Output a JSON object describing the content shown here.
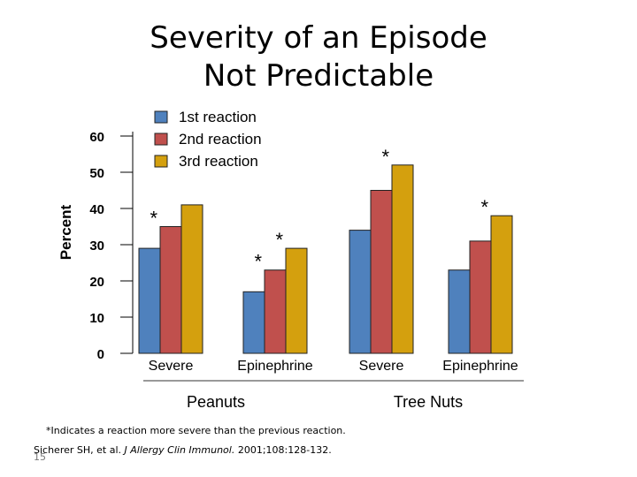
{
  "slide": {
    "title_line1": "Severity of an Episode",
    "title_line2": "Not Predictable",
    "footnote": "*Indicates a reaction more severe than the previous reaction.",
    "citation_authors": "Sicherer SH, et al.",
    "citation_journal": "J Allergy Clin Immunol.",
    "citation_details": "2001;108:128-132.",
    "slide_number": "15"
  },
  "chart_data": {
    "type": "bar",
    "title": "",
    "ylabel": "Percent",
    "xlabel": "",
    "ylim": [
      0,
      60
    ],
    "yticks": [
      0,
      10,
      20,
      30,
      40,
      50,
      60
    ],
    "grid": false,
    "legend_position": "top-left",
    "categories": [
      "Severe",
      "Epinephrine",
      "Severe",
      "Epinephrine"
    ],
    "groups": [
      {
        "label": "Peanuts",
        "categories": [
          0,
          1
        ]
      },
      {
        "label": "Tree Nuts",
        "categories": [
          2,
          3
        ]
      }
    ],
    "series": [
      {
        "name": "1st reaction",
        "color": "#4f81bd",
        "values": [
          29,
          17,
          34,
          23
        ]
      },
      {
        "name": "2nd reaction",
        "color": "#c0504d",
        "values": [
          35,
          23,
          45,
          31
        ]
      },
      {
        "name": "3rd reaction",
        "color": "#d4a00e",
        "values": [
          41,
          29,
          52,
          38
        ]
      }
    ],
    "annotations": [
      {
        "text": "*",
        "category": 0,
        "series": 1
      },
      {
        "text": "*",
        "category": 1,
        "series": 1
      },
      {
        "text": "*",
        "category": 1,
        "series": 2
      },
      {
        "text": "*",
        "category": 2,
        "series": 2
      },
      {
        "text": "*",
        "category": 3,
        "series": 2
      }
    ]
  }
}
